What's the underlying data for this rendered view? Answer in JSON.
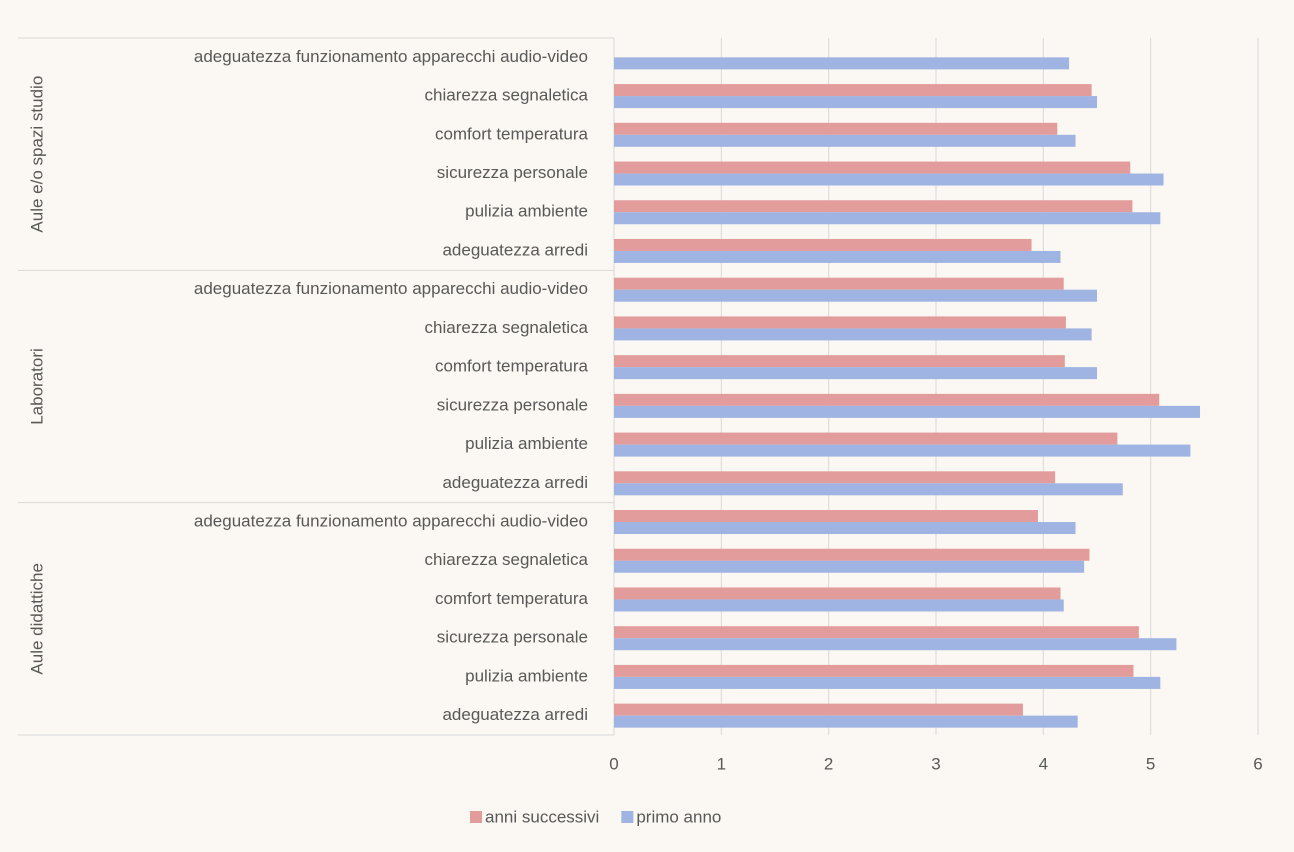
{
  "chart_data": {
    "type": "bar",
    "orientation": "horizontal",
    "groups": [
      {
        "name": "Aule e/o spazi studio",
        "categories": [
          "adeguatezza funzionamento  apparecchi audio-video",
          "chiarezza segnaletica",
          "comfort temperatura",
          "sicurezza personale",
          "pulizia ambiente",
          "adeguatezza arredi"
        ]
      },
      {
        "name": "Laboratori",
        "categories": [
          "adeguatezza funzionamento  apparecchi audio-video",
          "chiarezza segnaletica",
          "comfort temperatura",
          "sicurezza personale",
          "pulizia ambiente",
          "adeguatezza arredi"
        ]
      },
      {
        "name": "Aule didattiche",
        "categories": [
          "adeguatezza funzionamento  apparecchi audio-video",
          "chiarezza segnaletica",
          "comfort temperatura",
          "sicurezza personale",
          "pulizia ambiente",
          "adeguatezza arredi"
        ]
      }
    ],
    "series": [
      {
        "name": "anni successivi",
        "color": "#e39c9c",
        "values": [
          null,
          4.45,
          4.13,
          4.81,
          4.83,
          3.89,
          4.19,
          4.21,
          4.2,
          5.08,
          4.69,
          4.11,
          3.95,
          4.43,
          4.16,
          4.89,
          4.84,
          3.81
        ]
      },
      {
        "name": "primo anno",
        "color": "#9fb4e2",
        "values": [
          4.24,
          4.5,
          4.3,
          5.12,
          5.09,
          4.16,
          4.5,
          4.45,
          4.5,
          5.46,
          5.37,
          4.74,
          4.3,
          4.38,
          4.19,
          5.24,
          5.09,
          4.32
        ]
      }
    ],
    "xlim": [
      0,
      6
    ],
    "xticks": [
      0,
      1,
      2,
      3,
      4,
      5,
      6
    ],
    "grid": true,
    "legend": "bottom"
  }
}
